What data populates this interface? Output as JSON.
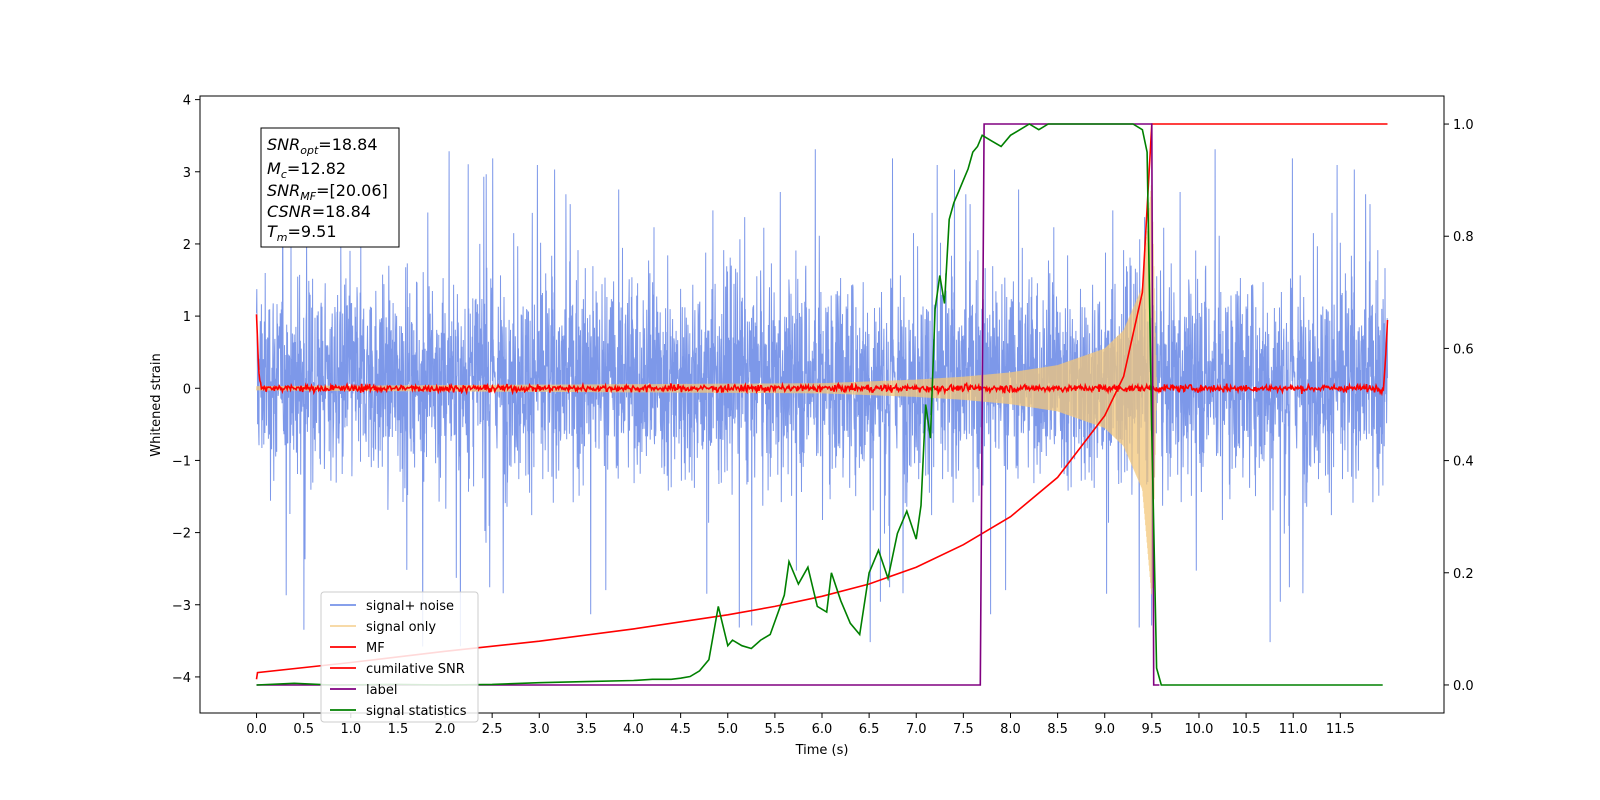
{
  "chart_data": {
    "type": "line",
    "xlabel": "Time (s)",
    "ylabel": "Whitened strain",
    "xlim": [
      -0.6,
      12.6
    ],
    "ylim": [
      -4.5,
      4.05
    ],
    "y2lim": [
      -0.05,
      1.05
    ],
    "x_ticks": [
      "0.0",
      "0.5",
      "1.0",
      "1.5",
      "2.0",
      "2.5",
      "3.0",
      "3.5",
      "4.0",
      "4.5",
      "5.0",
      "5.5",
      "6.0",
      "6.5",
      "7.0",
      "7.5",
      "8.0",
      "8.5",
      "9.0",
      "9.5",
      "10.0",
      "10.5",
      "11.0",
      "11.5"
    ],
    "y_ticks": [
      "4",
      "3",
      "2",
      "1",
      "0",
      "−1",
      "−2",
      "−3",
      "−4"
    ],
    "y2_ticks": [
      "1.0",
      "0.8",
      "0.6",
      "0.4",
      "0.2",
      "0.0"
    ],
    "legend_position": "lower-left",
    "stats": {
      "snr_opt": {
        "base": "SNR",
        "sub": "opt",
        "value": "=18.84"
      },
      "mc": {
        "base": "M",
        "sub": "c",
        "value": "=12.82"
      },
      "snr_mf": {
        "base": "SNR",
        "sub": "MF",
        "value": "=[20.06]"
      },
      "csnr": {
        "base": "CSNR",
        "value": "=18.84"
      },
      "tm": {
        "base": "T",
        "sub": "m",
        "value": "=9.51"
      }
    },
    "series": [
      {
        "name": "signal+ noise",
        "color": "#7692e8",
        "axis": "left",
        "style": "noise",
        "x_range": [
          0.0,
          12.0
        ],
        "noise_envelope": {
          "typical": [
            -1.5,
            2.0
          ],
          "extremes": [
            -3.6,
            3.4
          ]
        }
      },
      {
        "name": "signal only",
        "color": "#f3c77a",
        "axis": "left",
        "style": "chirp",
        "x_range": [
          0.0,
          9.55
        ],
        "envelope": {
          "x": [
            0.0,
            6.0,
            7.0,
            7.5,
            8.0,
            8.5,
            9.0,
            9.2,
            9.4,
            9.5,
            9.55
          ],
          "amplitude": [
            0.03,
            0.07,
            0.12,
            0.16,
            0.22,
            0.32,
            0.55,
            0.8,
            1.4,
            2.9,
            0.0
          ]
        }
      },
      {
        "name": "MF",
        "color": "#ff0000",
        "axis": "left",
        "style": "flat-noise",
        "x": [
          0.0,
          0.02,
          0.05,
          11.96,
          12.0
        ],
        "y": [
          1.0,
          0.3,
          0.0,
          0.0,
          0.9
        ],
        "jitter": 0.07
      },
      {
        "name": "cumilative SNR",
        "color": "#ff0000",
        "axis": "right",
        "x": [
          0.0,
          0.01,
          1.0,
          2.0,
          3.0,
          4.0,
          5.0,
          5.5,
          6.0,
          6.5,
          7.0,
          7.5,
          8.0,
          8.5,
          9.0,
          9.2,
          9.4,
          9.5,
          12.0
        ],
        "y": [
          0.01,
          0.022,
          0.04,
          0.06,
          0.078,
          0.1,
          0.125,
          0.14,
          0.158,
          0.18,
          0.21,
          0.25,
          0.3,
          0.37,
          0.48,
          0.55,
          0.7,
          1.0,
          1.0
        ]
      },
      {
        "name": "label",
        "color": "#800080",
        "axis": "right",
        "x": [
          0.0,
          7.68,
          7.72,
          9.5,
          9.52,
          9.58
        ],
        "y": [
          0.0,
          0.0,
          1.0,
          1.0,
          0.0,
          0.0
        ]
      },
      {
        "name": "signal statistics",
        "color": "#008000",
        "axis": "right",
        "x": [
          0.0,
          0.4,
          0.8,
          1.5,
          2.0,
          2.5,
          3.0,
          3.5,
          4.0,
          4.2,
          4.4,
          4.5,
          4.6,
          4.7,
          4.8,
          4.9,
          5.0,
          5.05,
          5.15,
          5.25,
          5.35,
          5.45,
          5.6,
          5.65,
          5.75,
          5.85,
          5.95,
          6.05,
          6.1,
          6.2,
          6.3,
          6.4,
          6.5,
          6.6,
          6.7,
          6.8,
          6.9,
          7.0,
          7.05,
          7.1,
          7.15,
          7.2,
          7.25,
          7.3,
          7.35,
          7.4,
          7.45,
          7.5,
          7.55,
          7.6,
          7.65,
          7.7,
          7.8,
          7.9,
          8.0,
          8.1,
          8.2,
          8.3,
          8.4,
          8.5,
          8.6,
          8.7,
          8.8,
          8.9,
          9.0,
          9.1,
          9.3,
          9.4,
          9.45,
          9.5,
          9.55,
          9.6,
          9.7,
          10.0,
          11.0,
          11.95
        ],
        "y": [
          0.0,
          0.003,
          0.0,
          0.001,
          0.0,
          0.001,
          0.004,
          0.006,
          0.008,
          0.01,
          0.01,
          0.012,
          0.015,
          0.025,
          0.045,
          0.14,
          0.07,
          0.08,
          0.07,
          0.065,
          0.08,
          0.09,
          0.16,
          0.22,
          0.18,
          0.21,
          0.14,
          0.13,
          0.2,
          0.15,
          0.11,
          0.09,
          0.2,
          0.24,
          0.19,
          0.27,
          0.31,
          0.26,
          0.32,
          0.5,
          0.44,
          0.67,
          0.73,
          0.68,
          0.83,
          0.86,
          0.88,
          0.9,
          0.92,
          0.95,
          0.96,
          0.98,
          0.97,
          0.96,
          0.98,
          0.99,
          1.0,
          0.99,
          1.0,
          1.0,
          1.0,
          1.0,
          1.0,
          1.0,
          1.0,
          1.0,
          1.0,
          0.99,
          0.95,
          0.45,
          0.03,
          0.0,
          0.0,
          0.0,
          0.0,
          0.0
        ]
      }
    ]
  },
  "colors": {
    "noise": "#7692e8",
    "signal": "#f3c77a",
    "mf": "#ff0000",
    "label": "#800080",
    "stats": "#008000"
  }
}
